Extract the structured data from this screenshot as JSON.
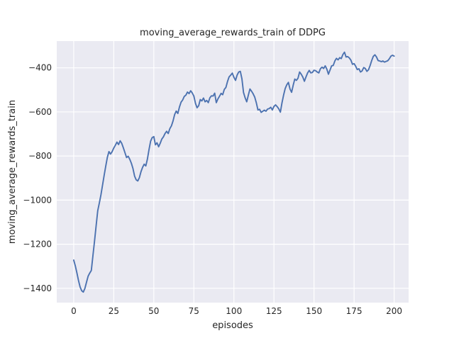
{
  "colors": {
    "figure_bg": "#ffffff",
    "axes_bg": "#eaeaf2",
    "grid": "#ffffff",
    "line": "#4c72b0",
    "text": "#262626"
  },
  "chart_data": {
    "type": "line",
    "title": "moving_average_rewards_train of DDPG",
    "xlabel": "episodes",
    "ylabel": "moving_average_rewards_train",
    "legend": null,
    "grid": true,
    "x_ticks": [
      0,
      25,
      50,
      75,
      100,
      125,
      150,
      175,
      200
    ],
    "y_ticks": [
      -400,
      -600,
      -800,
      -1000,
      -1200,
      -1400
    ],
    "xlim": [
      -10.6,
      209.1
    ],
    "ylim": [
      -1465,
      -279
    ],
    "series_name": "moving_average_rewards_train",
    "points": [
      [
        0,
        -1272
      ],
      [
        1,
        -1298
      ],
      [
        2,
        -1330
      ],
      [
        3,
        -1365
      ],
      [
        4,
        -1394
      ],
      [
        5,
        -1411
      ],
      [
        6,
        -1417
      ],
      [
        7,
        -1400
      ],
      [
        8,
        -1372
      ],
      [
        9,
        -1345
      ],
      [
        10,
        -1331
      ],
      [
        11,
        -1319
      ],
      [
        12,
        -1252
      ],
      [
        13,
        -1186
      ],
      [
        14,
        -1116
      ],
      [
        15,
        -1048
      ],
      [
        16,
        -1013
      ],
      [
        17,
        -976
      ],
      [
        18,
        -932
      ],
      [
        19,
        -888
      ],
      [
        20,
        -846
      ],
      [
        21,
        -806
      ],
      [
        22,
        -780
      ],
      [
        23,
        -791
      ],
      [
        24,
        -780
      ],
      [
        25,
        -764
      ],
      [
        26,
        -751
      ],
      [
        27,
        -737
      ],
      [
        28,
        -748
      ],
      [
        29,
        -731
      ],
      [
        30,
        -743
      ],
      [
        31,
        -763
      ],
      [
        32,
        -785
      ],
      [
        33,
        -807
      ],
      [
        34,
        -801
      ],
      [
        35,
        -815
      ],
      [
        36,
        -833
      ],
      [
        37,
        -857
      ],
      [
        38,
        -891
      ],
      [
        39,
        -908
      ],
      [
        40,
        -913
      ],
      [
        41,
        -898
      ],
      [
        42,
        -871
      ],
      [
        43,
        -851
      ],
      [
        44,
        -837
      ],
      [
        45,
        -845
      ],
      [
        46,
        -814
      ],
      [
        47,
        -771
      ],
      [
        48,
        -733
      ],
      [
        49,
        -716
      ],
      [
        50,
        -712
      ],
      [
        51,
        -749
      ],
      [
        52,
        -740
      ],
      [
        53,
        -758
      ],
      [
        54,
        -742
      ],
      [
        55,
        -723
      ],
      [
        56,
        -713
      ],
      [
        57,
        -698
      ],
      [
        58,
        -688
      ],
      [
        59,
        -698
      ],
      [
        60,
        -676
      ],
      [
        61,
        -663
      ],
      [
        62,
        -641
      ],
      [
        63,
        -612
      ],
      [
        64,
        -596
      ],
      [
        65,
        -607
      ],
      [
        66,
        -578
      ],
      [
        67,
        -556
      ],
      [
        68,
        -546
      ],
      [
        69,
        -530
      ],
      [
        70,
        -524
      ],
      [
        71,
        -510
      ],
      [
        72,
        -517
      ],
      [
        73,
        -504
      ],
      [
        74,
        -514
      ],
      [
        75,
        -528
      ],
      [
        76,
        -561
      ],
      [
        77,
        -581
      ],
      [
        78,
        -572
      ],
      [
        79,
        -544
      ],
      [
        80,
        -550
      ],
      [
        81,
        -537
      ],
      [
        82,
        -554
      ],
      [
        83,
        -548
      ],
      [
        84,
        -558
      ],
      [
        85,
        -536
      ],
      [
        86,
        -527
      ],
      [
        87,
        -528
      ],
      [
        88,
        -515
      ],
      [
        89,
        -558
      ],
      [
        90,
        -541
      ],
      [
        91,
        -529
      ],
      [
        92,
        -516
      ],
      [
        93,
        -522
      ],
      [
        94,
        -498
      ],
      [
        95,
        -489
      ],
      [
        96,
        -462
      ],
      [
        97,
        -441
      ],
      [
        98,
        -433
      ],
      [
        99,
        -424
      ],
      [
        100,
        -443
      ],
      [
        101,
        -457
      ],
      [
        102,
        -433
      ],
      [
        103,
        -419
      ],
      [
        104,
        -416
      ],
      [
        105,
        -450
      ],
      [
        106,
        -512
      ],
      [
        107,
        -536
      ],
      [
        108,
        -554
      ],
      [
        109,
        -524
      ],
      [
        110,
        -496
      ],
      [
        111,
        -506
      ],
      [
        112,
        -518
      ],
      [
        113,
        -533
      ],
      [
        114,
        -559
      ],
      [
        115,
        -591
      ],
      [
        116,
        -588
      ],
      [
        117,
        -602
      ],
      [
        118,
        -597
      ],
      [
        119,
        -592
      ],
      [
        120,
        -597
      ],
      [
        121,
        -587
      ],
      [
        122,
        -585
      ],
      [
        123,
        -579
      ],
      [
        124,
        -591
      ],
      [
        125,
        -575
      ],
      [
        126,
        -568
      ],
      [
        127,
        -576
      ],
      [
        128,
        -586
      ],
      [
        129,
        -601
      ],
      [
        130,
        -559
      ],
      [
        131,
        -524
      ],
      [
        132,
        -494
      ],
      [
        133,
        -477
      ],
      [
        134,
        -466
      ],
      [
        135,
        -496
      ],
      [
        136,
        -511
      ],
      [
        137,
        -479
      ],
      [
        138,
        -451
      ],
      [
        139,
        -457
      ],
      [
        140,
        -447
      ],
      [
        141,
        -419
      ],
      [
        142,
        -429
      ],
      [
        143,
        -442
      ],
      [
        144,
        -461
      ],
      [
        145,
        -441
      ],
      [
        146,
        -423
      ],
      [
        147,
        -412
      ],
      [
        148,
        -423
      ],
      [
        149,
        -421
      ],
      [
        150,
        -411
      ],
      [
        151,
        -413
      ],
      [
        152,
        -419
      ],
      [
        153,
        -423
      ],
      [
        154,
        -404
      ],
      [
        155,
        -397
      ],
      [
        156,
        -403
      ],
      [
        157,
        -391
      ],
      [
        158,
        -406
      ],
      [
        159,
        -429
      ],
      [
        160,
        -410
      ],
      [
        161,
        -391
      ],
      [
        162,
        -389
      ],
      [
        163,
        -369
      ],
      [
        164,
        -357
      ],
      [
        165,
        -364
      ],
      [
        166,
        -354
      ],
      [
        167,
        -358
      ],
      [
        168,
        -340
      ],
      [
        169,
        -329
      ],
      [
        170,
        -351
      ],
      [
        171,
        -349
      ],
      [
        172,
        -355
      ],
      [
        173,
        -365
      ],
      [
        174,
        -384
      ],
      [
        175,
        -381
      ],
      [
        176,
        -393
      ],
      [
        177,
        -408
      ],
      [
        178,
        -404
      ],
      [
        179,
        -419
      ],
      [
        180,
        -414
      ],
      [
        181,
        -399
      ],
      [
        182,
        -403
      ],
      [
        183,
        -416
      ],
      [
        184,
        -409
      ],
      [
        185,
        -390
      ],
      [
        186,
        -367
      ],
      [
        187,
        -348
      ],
      [
        188,
        -341
      ],
      [
        189,
        -351
      ],
      [
        190,
        -367
      ],
      [
        191,
        -369
      ],
      [
        192,
        -372
      ],
      [
        193,
        -369
      ],
      [
        194,
        -374
      ],
      [
        195,
        -371
      ],
      [
        196,
        -368
      ],
      [
        197,
        -359
      ],
      [
        198,
        -347
      ],
      [
        199,
        -343
      ],
      [
        200,
        -347
      ]
    ]
  }
}
